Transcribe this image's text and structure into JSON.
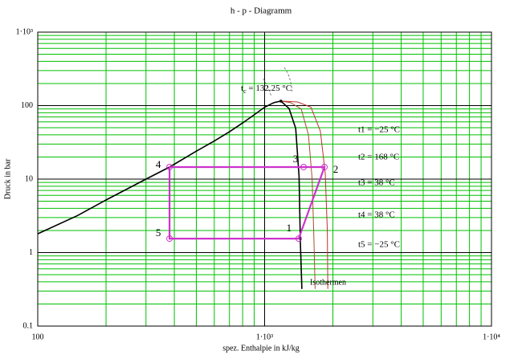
{
  "chart_data": {
    "type": "line",
    "title": "h - p - Diagramm",
    "x_label": "spez. Enthalpie in kJ/kg",
    "y_label": "Druck in bar",
    "xscale": "log",
    "yscale": "log",
    "xlim": [
      100,
      10000
    ],
    "ylim": [
      0.1,
      1000
    ],
    "xticks": [
      100,
      {
        "value": 1000,
        "label": "1·10³"
      },
      {
        "value": 10000,
        "label": "1·10⁴"
      }
    ],
    "yticks": [
      0.1,
      1,
      10,
      100,
      {
        "value": 1000,
        "label": "1·10³"
      }
    ],
    "xminor": [
      200,
      300,
      400,
      500,
      600,
      700,
      800,
      900,
      2000,
      3000,
      4000,
      5000,
      6000,
      7000,
      8000,
      9000
    ],
    "yminor": [
      0.2,
      0.3,
      0.4,
      0.5,
      0.6,
      0.7,
      0.8,
      0.9,
      2,
      3,
      4,
      5,
      6,
      7,
      8,
      9,
      20,
      30,
      40,
      50,
      60,
      70,
      80,
      90,
      200,
      300,
      400,
      500,
      600,
      700,
      800,
      900
    ],
    "grid": true,
    "major_grid_color": "#000000",
    "minor_grid_color": "#00c000",
    "series": [
      {
        "color": "#000000",
        "x": [
          100,
          150,
          200,
          300,
          381,
          500,
          600,
          700,
          800,
          900,
          1000,
          1100,
          1180,
          1282,
          1371,
          1419,
          1437,
          1460
        ],
        "values": [
          1.8,
          3.2,
          5.2,
          10,
          14.6,
          24,
          33,
          44,
          58,
          75,
          95,
          110,
          115,
          91,
          49,
          10.9,
          1.4,
          0.32
        ]
      },
      {
        "color": "#a0522d",
        "x": [
          1180,
          1300,
          1450,
          1560,
          1620,
          1650,
          1670
        ],
        "values": [
          115,
          110,
          90,
          40,
          10,
          1.5,
          0.32
        ]
      },
      {
        "color": "#c03030",
        "x": [
          1180,
          1400,
          1600,
          1760,
          1850,
          1890,
          1900
        ],
        "values": [
          115,
          112,
          95,
          45,
          12,
          2,
          0.32
        ]
      }
    ],
    "cycle": {
      "color": "#cc33cc",
      "labels": [
        "1",
        "2",
        "3",
        "4",
        "5"
      ],
      "x": [
        1413,
        1835,
        1485,
        381,
        381
      ],
      "values": [
        1.55,
        14.6,
        14.6,
        14.6,
        1.55
      ],
      "closed": true
    },
    "critical_point": {
      "x": 1180,
      "y": 115
    },
    "critical_label": {
      "text": "t",
      "sub": "c",
      "rest": " = 132.25 °C"
    },
    "annotations": [
      "t1 = −25 °C",
      "t2 = 168 °C",
      "t3 = 38 °C",
      "t4 = 38 °C",
      "t5 = −25 °C"
    ],
    "isotherm_label": "Isothermen"
  }
}
